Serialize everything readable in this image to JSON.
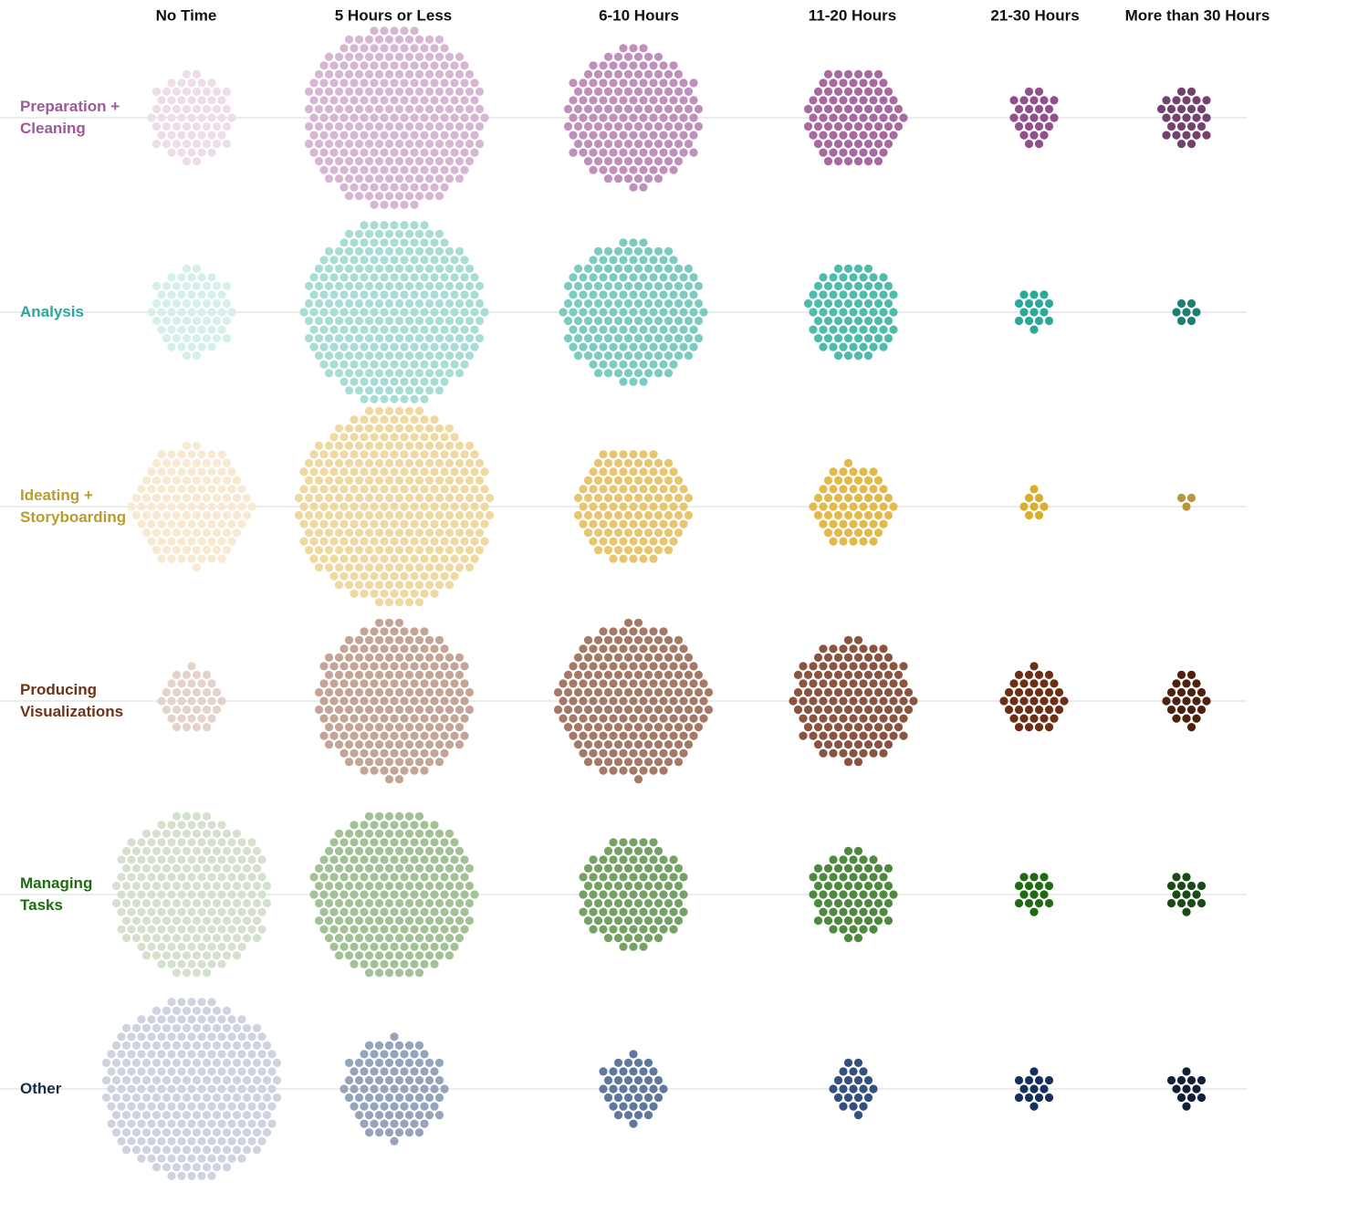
{
  "chart_data": {
    "type": "dot-cluster",
    "categories": [
      "No Time",
      "5 Hours or Less",
      "6-10 Hours",
      "11-20 Hours",
      "21-30 Hours",
      "More than 30 Hours"
    ],
    "series": [
      {
        "name": "Preparation +\nCleaning",
        "color": "#a0589a",
        "colors": [
          "#ecdde9",
          "#d7b6d3",
          "#c08fbb",
          "#a869a3",
          "#914f8d",
          "#74406f"
        ],
        "values": [
          69,
          300,
          172,
          90,
          25,
          28
        ]
      },
      {
        "name": "Analysis",
        "color": "#2aa99a",
        "colors": [
          "#d6efeb",
          "#a8ddd5",
          "#7ccbc0",
          "#4ebcad",
          "#2aa99a",
          "#1f7f75"
        ],
        "values": [
          68,
          305,
          187,
          82,
          15,
          7
        ]
      },
      {
        "name": "Ideating +\nStoryboarding",
        "color": "#b89c2c",
        "colors": [
          "#f7ead0",
          "#f0d9a0",
          "#e8c66f",
          "#e3b94a",
          "#d9af2a",
          "#b8963a"
        ],
        "values": [
          130,
          352,
          122,
          62,
          8,
          3
        ]
      },
      {
        "name": "Producing\nVisualizations",
        "color": "#6e3216",
        "colors": [
          "#e3d3cc",
          "#c4a495",
          "#a47a66",
          "#8a5440",
          "#6e2e14",
          "#4e200e"
        ],
        "values": [
          38,
          224,
          214,
          136,
          38,
          22
        ]
      },
      {
        "name": "Managing\nTasks",
        "color": "#1f6b12",
        "colors": [
          "#d5e1cf",
          "#a2c195",
          "#73a264",
          "#4d8a3e",
          "#1f6b12",
          "#1a4a16"
        ],
        "values": [
          229,
          250,
          111,
          70,
          15,
          14
        ]
      },
      {
        "name": "Other",
        "color": "#1a2a48",
        "colors": [
          "#cdd3df",
          "#95a3bd",
          "#60789e",
          "#34507f",
          "#15305e",
          "#111f38"
        ],
        "values": [
          293,
          96,
          40,
          22,
          13,
          12
        ]
      }
    ]
  }
}
